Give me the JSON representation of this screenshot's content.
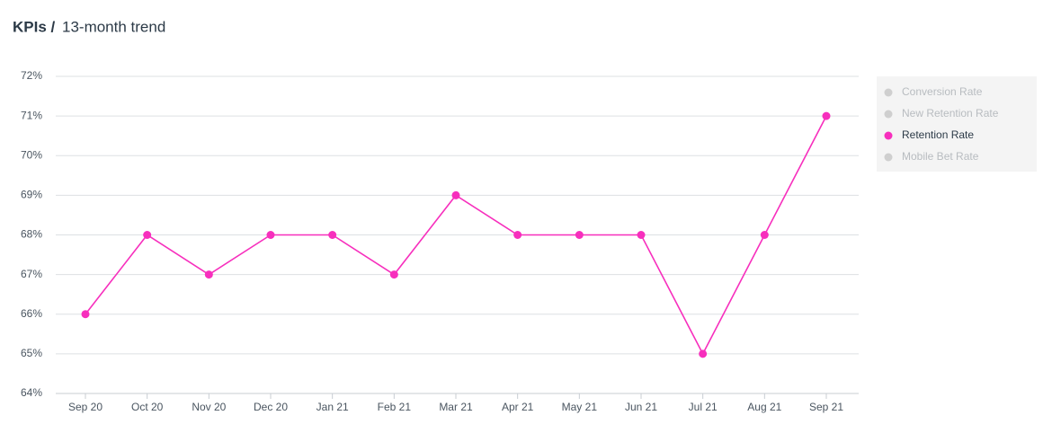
{
  "chart_data": {
    "type": "line",
    "title": "KPIs /",
    "subtitle": "13-month trend",
    "categories": [
      "Sep 20",
      "Oct 20",
      "Nov 20",
      "Dec 20",
      "Jan 21",
      "Feb 21",
      "Mar 21",
      "Apr 21",
      "May 21",
      "Jun 21",
      "Jul 21",
      "Aug 21",
      "Sep 21"
    ],
    "series": [
      {
        "name": "Retention Rate",
        "color": "#f72fbd",
        "values": [
          66,
          68,
          67,
          68,
          68,
          67,
          69,
          68,
          68,
          68,
          65,
          68,
          71
        ]
      }
    ],
    "legend_items": [
      {
        "name": "Conversion Rate",
        "active": false
      },
      {
        "name": "New Retention Rate",
        "active": false
      },
      {
        "name": "Retention Rate",
        "active": true
      },
      {
        "name": "Mobile Bet Rate",
        "active": false
      }
    ],
    "ylim": [
      64,
      72
    ],
    "yticks": [
      {
        "value": 64,
        "label": "64%"
      },
      {
        "value": 65,
        "label": "65%"
      },
      {
        "value": 66,
        "label": "66%"
      },
      {
        "value": 67,
        "label": "67%"
      },
      {
        "value": 68,
        "label": "68%"
      },
      {
        "value": 69,
        "label": "69%"
      },
      {
        "value": 70,
        "label": "70%"
      },
      {
        "value": 71,
        "label": "71%"
      },
      {
        "value": 72,
        "label": "72%"
      }
    ],
    "grid": true,
    "legend_position": "right"
  }
}
